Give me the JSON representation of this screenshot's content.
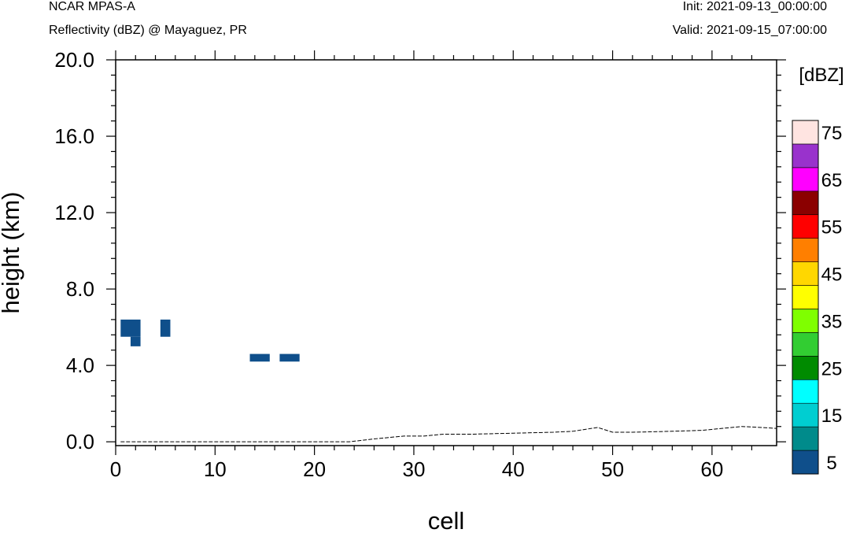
{
  "header": {
    "model": "NCAR MPAS-A",
    "field": "Reflectivity (dBZ) @ Mayaguez, PR",
    "init": "Init: 2021-09-13_00:00:00",
    "valid": "Valid: 2021-09-15_07:00:00"
  },
  "chart_data": {
    "type": "heatmap",
    "xlabel": "cell",
    "ylabel": "height (km)",
    "xlim": [
      0,
      66.5
    ],
    "ylim": [
      -0.2,
      20.0
    ],
    "x_ticks": [
      0,
      10,
      20,
      30,
      40,
      50,
      60
    ],
    "y_ticks": [
      0.0,
      4.0,
      8.0,
      12.0,
      16.0,
      20.0
    ],
    "y_tick_labels": [
      "0.0",
      "4.0",
      "8.0",
      "12.0",
      "16.0",
      "20.0"
    ],
    "reflectivity_cells": [
      {
        "x0": 0.5,
        "x1": 2.5,
        "y0": 5.5,
        "y1": 6.4,
        "dbz": 5
      },
      {
        "x0": 1.5,
        "x1": 2.5,
        "y0": 5.0,
        "y1": 5.5,
        "dbz": 5
      },
      {
        "x0": 4.5,
        "x1": 5.5,
        "y0": 5.5,
        "y1": 6.4,
        "dbz": 5
      },
      {
        "x0": 13.5,
        "x1": 15.5,
        "y0": 4.2,
        "y1": 4.6,
        "dbz": 5
      },
      {
        "x0": 16.5,
        "x1": 18.5,
        "y0": 4.2,
        "y1": 4.6,
        "dbz": 5
      }
    ],
    "terrain": {
      "x": [
        0.5,
        10,
        20,
        23.5,
        26,
        29,
        31,
        33,
        36,
        40,
        44,
        46,
        48.5,
        50,
        52,
        56,
        59,
        61,
        63,
        65,
        66.5
      ],
      "y": [
        0.0,
        0.0,
        0.0,
        0.0,
        0.15,
        0.3,
        0.3,
        0.4,
        0.4,
        0.45,
        0.5,
        0.55,
        0.75,
        0.5,
        0.5,
        0.55,
        0.6,
        0.7,
        0.8,
        0.75,
        0.7
      ]
    },
    "colorbar": {
      "title": "[dBZ]",
      "levels": [
        5,
        10,
        15,
        20,
        25,
        30,
        35,
        40,
        45,
        50,
        55,
        60,
        65,
        70,
        75
      ],
      "labels": [
        "5",
        "15",
        "25",
        "35",
        "45",
        "55",
        "65",
        "75"
      ],
      "colors": [
        "#0F4F8B",
        "#008B8B",
        "#00CED1",
        "#00FFFF",
        "#008B00",
        "#32CD32",
        "#7FFF00",
        "#FFFF00",
        "#FFD700",
        "#FF7F00",
        "#FF0000",
        "#8B0000",
        "#FF00FF",
        "#9932CC",
        "#FFE4E1"
      ]
    }
  }
}
